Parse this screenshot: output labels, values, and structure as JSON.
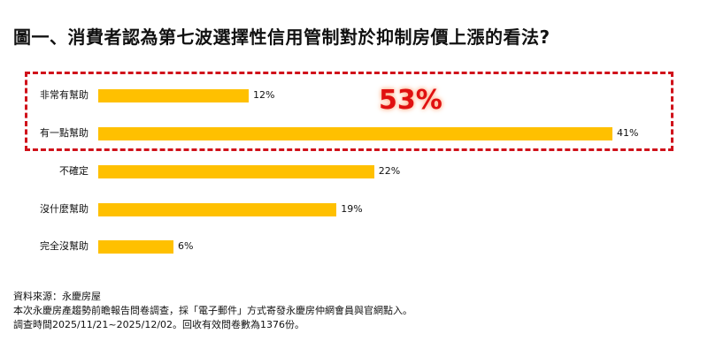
{
  "title": "圖一、消費者認為第七波選擇性信用管制對於抑制房價上漲的看法?",
  "callout": {
    "label": "53%",
    "color": "#e01010"
  },
  "colors": {
    "bar": "#ffc000",
    "highlight_border": "#d0121b"
  },
  "bars": [
    {
      "label": "非常有幫助",
      "value": 12,
      "value_label": "12%"
    },
    {
      "label": "有一點幫助",
      "value": 41,
      "value_label": "41%"
    },
    {
      "label": "不確定",
      "value": 22,
      "value_label": "22%"
    },
    {
      "label": "沒什麼幫助",
      "value": 19,
      "value_label": "19%"
    },
    {
      "label": "完全沒幫助",
      "value": 6,
      "value_label": "6%"
    }
  ],
  "footer": {
    "line1": "資料來源：永慶房屋",
    "line2": "本次永慶房產趨勢前瞻報告問卷調查，採「電子郵件」方式寄發永慶房仲網會員與官網點入。",
    "line3": "調查時間2025/11/21~2025/12/02。回收有效問卷數為1376份。"
  },
  "chart_data": {
    "type": "bar",
    "orientation": "horizontal",
    "title": "圖一、消費者認為第七波選擇性信用管制對於抑制房價上漲的看法?",
    "categories": [
      "非常有幫助",
      "有一點幫助",
      "不確定",
      "沒什麼幫助",
      "完全沒幫助"
    ],
    "values": [
      12,
      41,
      22,
      19,
      6
    ],
    "unit": "%",
    "xlabel": "",
    "ylabel": "",
    "grid": false,
    "legend": null,
    "annotations": [
      {
        "text": "53%",
        "note": "sum of 非常有幫助 + 有一點幫助, highlighted with red dashed box"
      }
    ],
    "source": "資料來源：永慶房屋"
  }
}
